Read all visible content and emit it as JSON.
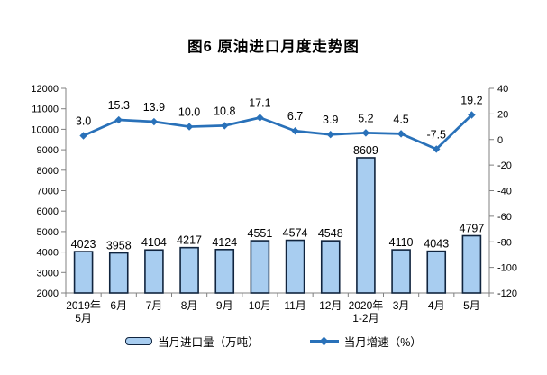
{
  "title": "图6  原油进口月度走势图",
  "chart_data": {
    "type": "bar+line",
    "title": "图6  原油进口月度走势图",
    "categories": [
      "2019年\n5月",
      "6月",
      "7月",
      "8月",
      "9月",
      "10月",
      "11月",
      "12月",
      "2020年\n1-2月",
      "3月",
      "4月",
      "5月"
    ],
    "series": [
      {
        "name": "当月进口量（万吨）",
        "type": "bar",
        "axis": "left",
        "values": [
          4023,
          3958,
          4104,
          4217,
          4124,
          4551,
          4574,
          4548,
          8609,
          4110,
          4043,
          4797
        ]
      },
      {
        "name": "当月增速（%）",
        "type": "line",
        "axis": "right",
        "values": [
          3.0,
          15.3,
          13.9,
          10.0,
          10.8,
          17.1,
          6.7,
          3.9,
          5.2,
          4.5,
          -7.5,
          19.2
        ]
      }
    ],
    "left_axis": {
      "min": 2000,
      "max": 12000,
      "step": 1000
    },
    "right_axis": {
      "min": -120,
      "max": 40,
      "step": 20
    },
    "grid": false,
    "legend_position": "bottom",
    "colors": {
      "bar_fill": "#A8CDF0",
      "bar_border": "#10243E",
      "line": "#2971B9",
      "axis": "#808080",
      "text": "#000000"
    }
  }
}
